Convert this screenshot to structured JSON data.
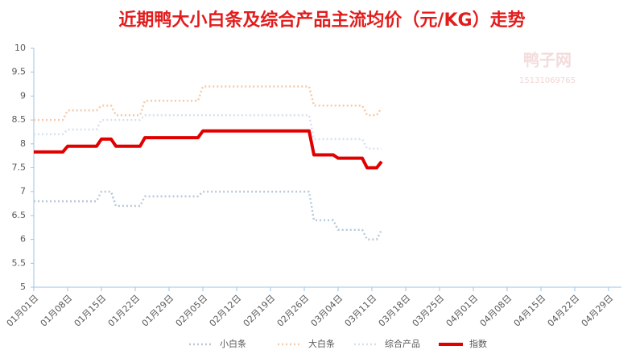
{
  "chart_data": {
    "type": "line",
    "title": "近期鸭大小白条及综合产品主流均价（元/KG）走势",
    "watermark": "鸭子网",
    "watermark_phone": "15131069765",
    "categories": [
      "01月01日",
      null,
      null,
      null,
      null,
      null,
      null,
      "01月08日",
      null,
      null,
      null,
      null,
      null,
      null,
      "01月15日",
      null,
      null,
      null,
      null,
      null,
      null,
      "01月22日",
      null,
      null,
      null,
      null,
      null,
      null,
      "01月29日",
      null,
      null,
      null,
      null,
      null,
      null,
      "02月05日",
      null,
      null,
      null,
      null,
      null,
      null,
      "02月12日",
      null,
      null,
      null,
      null,
      null,
      null,
      "02月19日",
      null,
      null,
      null,
      null,
      null,
      null,
      "02月26日",
      null,
      null,
      null,
      null,
      null,
      null,
      "03月04日",
      null,
      null,
      null,
      null,
      null,
      null,
      "03月11日",
      null,
      null,
      null,
      null,
      null,
      null,
      "03月18日",
      null,
      null,
      null,
      null,
      null,
      null,
      "03月25日",
      null,
      null,
      null,
      null,
      null,
      null,
      "04月01日",
      null,
      null,
      null,
      null,
      null,
      null,
      "04月08日",
      null,
      null,
      null,
      null,
      null,
      null,
      "04月15日",
      null,
      null,
      null,
      null,
      null,
      null,
      "04月22日",
      null,
      null,
      null,
      null,
      null,
      null,
      "04月29日"
    ],
    "series": [
      {
        "name": "小白条",
        "color": "#b7c9dc",
        "dashed": true,
        "values": [
          6.8,
          6.8,
          6.8,
          6.8,
          6.8,
          6.8,
          6.8,
          6.8,
          6.8,
          6.8,
          6.8,
          6.8,
          6.8,
          6.8,
          7.0,
          7.0,
          7.0,
          6.7,
          6.7,
          6.7,
          6.7,
          6.7,
          6.7,
          6.9,
          6.9,
          6.9,
          6.9,
          6.9,
          6.9,
          6.9,
          6.9,
          6.9,
          6.9,
          6.9,
          6.9,
          7.0,
          7.0,
          7.0,
          7.0,
          7.0,
          7.0,
          7.0,
          7.0,
          7.0,
          7.0,
          7.0,
          7.0,
          7.0,
          7.0,
          7.0,
          7.0,
          7.0,
          7.0,
          7.0,
          7.0,
          7.0,
          7.0,
          7.0,
          6.4,
          6.4,
          6.4,
          6.4,
          6.4,
          6.2,
          6.2,
          6.2,
          6.2,
          6.2,
          6.2,
          6.0,
          6.0,
          6.0,
          6.2,
          null,
          null,
          null,
          null,
          null,
          null,
          null,
          null,
          null,
          null,
          null,
          null,
          null,
          null,
          null,
          null,
          null,
          null,
          null,
          null,
          null,
          null,
          null,
          null,
          null,
          null,
          null,
          null,
          null,
          null,
          null,
          null,
          null,
          null,
          null,
          null,
          null,
          null,
          null,
          null,
          null,
          null,
          null,
          null,
          null,
          null,
          null
        ]
      },
      {
        "name": "大白条",
        "color": "#f5c9a6",
        "dashed": true,
        "values": [
          8.5,
          8.5,
          8.5,
          8.5,
          8.5,
          8.5,
          8.5,
          8.7,
          8.7,
          8.7,
          8.7,
          8.7,
          8.7,
          8.7,
          8.8,
          8.8,
          8.8,
          8.6,
          8.6,
          8.6,
          8.6,
          8.6,
          8.6,
          8.9,
          8.9,
          8.9,
          8.9,
          8.9,
          8.9,
          8.9,
          8.9,
          8.9,
          8.9,
          8.9,
          8.9,
          9.2,
          9.2,
          9.2,
          9.2,
          9.2,
          9.2,
          9.2,
          9.2,
          9.2,
          9.2,
          9.2,
          9.2,
          9.2,
          9.2,
          9.2,
          9.2,
          9.2,
          9.2,
          9.2,
          9.2,
          9.2,
          9.2,
          9.2,
          8.8,
          8.8,
          8.8,
          8.8,
          8.8,
          8.8,
          8.8,
          8.8,
          8.8,
          8.8,
          8.8,
          8.6,
          8.6,
          8.6,
          8.75,
          null,
          null,
          null,
          null,
          null,
          null,
          null,
          null,
          null,
          null,
          null,
          null,
          null,
          null,
          null,
          null,
          null,
          null,
          null,
          null,
          null,
          null,
          null,
          null,
          null,
          null,
          null,
          null,
          null,
          null,
          null,
          null,
          null,
          null,
          null,
          null,
          null,
          null,
          null,
          null,
          null,
          null,
          null,
          null,
          null,
          null,
          null
        ]
      },
      {
        "name": "综合产品",
        "color": "#d4e2ef",
        "dashed": true,
        "values": [
          8.2,
          8.2,
          8.2,
          8.2,
          8.2,
          8.2,
          8.2,
          8.3,
          8.3,
          8.3,
          8.3,
          8.3,
          8.3,
          8.3,
          8.5,
          8.5,
          8.5,
          8.5,
          8.5,
          8.5,
          8.5,
          8.5,
          8.5,
          8.6,
          8.6,
          8.6,
          8.6,
          8.6,
          8.6,
          8.6,
          8.6,
          8.6,
          8.6,
          8.6,
          8.6,
          8.6,
          8.6,
          8.6,
          8.6,
          8.6,
          8.6,
          8.6,
          8.6,
          8.6,
          8.6,
          8.6,
          8.6,
          8.6,
          8.6,
          8.6,
          8.6,
          8.6,
          8.6,
          8.6,
          8.6,
          8.6,
          8.6,
          8.6,
          8.1,
          8.1,
          8.1,
          8.1,
          8.1,
          8.1,
          8.1,
          8.1,
          8.1,
          8.1,
          8.1,
          7.9,
          7.9,
          7.9,
          7.9,
          null,
          null,
          null,
          null,
          null,
          null,
          null,
          null,
          null,
          null,
          null,
          null,
          null,
          null,
          null,
          null,
          null,
          null,
          null,
          null,
          null,
          null,
          null,
          null,
          null,
          null,
          null,
          null,
          null,
          null,
          null,
          null,
          null,
          null,
          null,
          null,
          null,
          null,
          null,
          null,
          null,
          null,
          null,
          null,
          null,
          null,
          null
        ]
      },
      {
        "name": "指数",
        "color": "#e00000",
        "dashed": false,
        "values": [
          7.83,
          7.83,
          7.83,
          7.83,
          7.83,
          7.83,
          7.83,
          7.95,
          7.95,
          7.95,
          7.95,
          7.95,
          7.95,
          7.95,
          8.1,
          8.1,
          8.1,
          7.95,
          7.95,
          7.95,
          7.95,
          7.95,
          7.95,
          8.13,
          8.13,
          8.13,
          8.13,
          8.13,
          8.13,
          8.13,
          8.13,
          8.13,
          8.13,
          8.13,
          8.13,
          8.27,
          8.27,
          8.27,
          8.27,
          8.27,
          8.27,
          8.27,
          8.27,
          8.27,
          8.27,
          8.27,
          8.27,
          8.27,
          8.27,
          8.27,
          8.27,
          8.27,
          8.27,
          8.27,
          8.27,
          8.27,
          8.27,
          8.27,
          7.77,
          7.77,
          7.77,
          7.77,
          7.77,
          7.7,
          7.7,
          7.7,
          7.7,
          7.7,
          7.7,
          7.5,
          7.5,
          7.5,
          7.63,
          null,
          null,
          null,
          null,
          null,
          null,
          null,
          null,
          null,
          null,
          null,
          null,
          null,
          null,
          null,
          null,
          null,
          null,
          null,
          null,
          null,
          null,
          null,
          null,
          null,
          null,
          null,
          null,
          null,
          null,
          null,
          null,
          null,
          null,
          null,
          null,
          null,
          null,
          null,
          null,
          null,
          null,
          null,
          null,
          null,
          null,
          null
        ]
      }
    ],
    "ylim": [
      5,
      10
    ],
    "yticks": [
      5,
      5.5,
      6,
      6.5,
      7,
      7.5,
      8,
      8.5,
      9,
      9.5,
      10
    ],
    "grid": false,
    "legend": "bottom"
  }
}
